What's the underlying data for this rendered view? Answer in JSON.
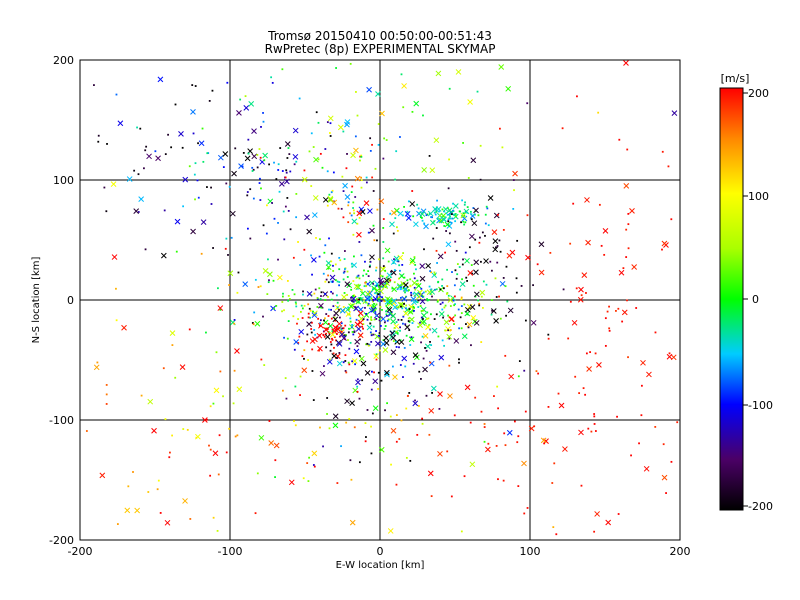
{
  "chart_data": {
    "type": "scatter",
    "title": "Tromsø 20150410 00:50:00-00:51:43",
    "subtitle": "RwPretec (8p) EXPERIMENTAL SKYMAP",
    "xlabel": "E-W location [km]",
    "ylabel": "N-S location [km]",
    "xlim": [
      -200,
      200
    ],
    "ylim": [
      -200,
      200
    ],
    "xticks": [
      "-200",
      "-100",
      "0",
      "100",
      "200"
    ],
    "yticks": [
      "-200",
      "-100",
      "0",
      "100",
      "200"
    ],
    "grid_x": [
      -100,
      0,
      100
    ],
    "grid_y": [
      -100,
      0,
      100
    ],
    "colorbar": {
      "unit": "[m/s]",
      "range": [
        -200,
        200
      ],
      "ticks": [
        "200",
        "100",
        "0",
        "-100",
        "-200"
      ],
      "colors": [
        "#000000",
        "#4b0066",
        "#0000ff",
        "#00ccff",
        "#00ff00",
        "#aaff00",
        "#ffff00",
        "#ff8800",
        "#ff0000"
      ]
    },
    "clusters": [
      {
        "cx": 0,
        "cy": 0,
        "sx": 35,
        "sy": 18,
        "n": 520,
        "v": 0,
        "vs": 60
      },
      {
        "cx": -35,
        "cy": -30,
        "sx": 10,
        "sy": 8,
        "n": 60,
        "v": 200,
        "vs": 5
      },
      {
        "cx": -10,
        "cy": -30,
        "sx": 25,
        "sy": 40,
        "n": 220,
        "v": -150,
        "vs": 60
      },
      {
        "cx": 45,
        "cy": 72,
        "sx": 14,
        "sy": 5,
        "n": 110,
        "v": -30,
        "vs": 30
      },
      {
        "cx": -75,
        "cy": 100,
        "sx": 40,
        "sy": 35,
        "n": 150,
        "v": -120,
        "vs": 70
      },
      {
        "cx": -20,
        "cy": 75,
        "sx": 20,
        "sy": 30,
        "n": 80,
        "v": 80,
        "vs": 120
      },
      {
        "cx": 60,
        "cy": 20,
        "sx": 25,
        "sy": 40,
        "n": 90,
        "v": -190,
        "vs": 20
      },
      {
        "cx": 120,
        "cy": -80,
        "sx": 60,
        "sy": 70,
        "n": 120,
        "v": 195,
        "vs": 10
      },
      {
        "cx": -120,
        "cy": -80,
        "sx": 45,
        "sy": 70,
        "n": 90,
        "v": 150,
        "vs": 60
      },
      {
        "cx": 20,
        "cy": 140,
        "sx": 60,
        "sy": 30,
        "n": 60,
        "v": 30,
        "vs": 80
      },
      {
        "cx": 0,
        "cy": -110,
        "sx": 60,
        "sy": 40,
        "n": 90,
        "v": 120,
        "vs": 80
      },
      {
        "cx": 150,
        "cy": 30,
        "sx": 40,
        "sy": 60,
        "n": 50,
        "v": 195,
        "vs": 8
      },
      {
        "cx": -150,
        "cy": 120,
        "sx": 30,
        "sy": 50,
        "n": 35,
        "v": -190,
        "vs": 15
      }
    ]
  }
}
